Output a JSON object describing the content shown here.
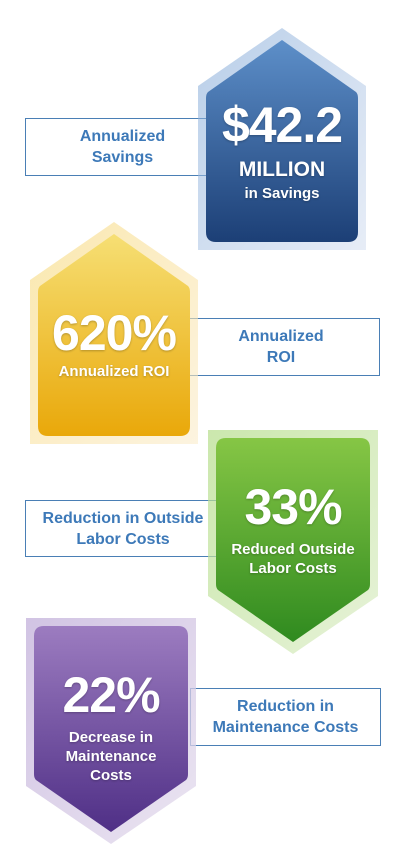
{
  "stats": [
    {
      "label_lines": [
        "Annualized",
        "Savings"
      ],
      "value": "$42.2",
      "unit": "MILLION",
      "caption_lines": [
        "in Savings"
      ],
      "colors": {
        "top": "#5d8fc9",
        "bottom": "#1c3f76",
        "halo": "#d3def0"
      },
      "icon": "arrow-up-badge"
    },
    {
      "label_lines": [
        "Annualized",
        "ROI"
      ],
      "value": "620%",
      "caption_lines": [
        "Annualized ROI"
      ],
      "colors": {
        "top": "#f6df74",
        "bottom": "#e9a80a",
        "halo": "#fbeccb"
      },
      "icon": "arrow-up-badge"
    },
    {
      "label_lines": [
        "Reduction in Outside",
        "Labor Costs"
      ],
      "value": "33%",
      "caption_lines": [
        "Reduced Outside",
        "Labor Costs"
      ],
      "colors": {
        "top": "#86c645",
        "bottom": "#2f8a1f",
        "halo": "#dcedc7"
      },
      "icon": "arrow-down-badge"
    },
    {
      "label_lines": [
        "Reduction in",
        "Maintenance Costs"
      ],
      "value": "22%",
      "caption_lines": [
        "Decrease in",
        "Maintenance",
        "Costs"
      ],
      "colors": {
        "top": "#9c7cc0",
        "bottom": "#4f2f86",
        "halo": "#e4dced"
      },
      "icon": "arrow-down-badge"
    }
  ]
}
